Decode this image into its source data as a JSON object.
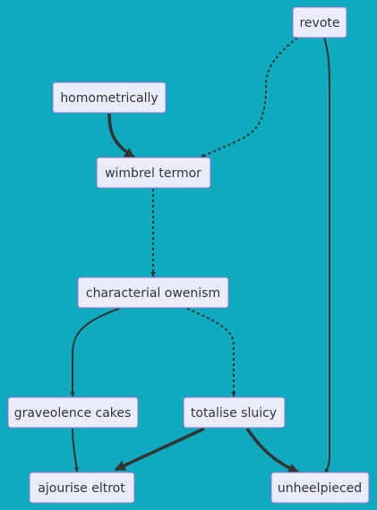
{
  "theme": {
    "background": "#0eabbf",
    "node_fill": "#ececff",
    "node_stroke": "#9370db",
    "edge_color": "#333333",
    "text_color": "#333333"
  },
  "nodes": [
    {
      "id": "revote",
      "label": "revote"
    },
    {
      "id": "homometrically",
      "label": "homometrically"
    },
    {
      "id": "wimbrel-termor",
      "label": "wimbrel termor"
    },
    {
      "id": "characterial-owenism",
      "label": "characterial owenism"
    },
    {
      "id": "graveolence-cakes",
      "label": "graveolence cakes"
    },
    {
      "id": "totalise-sluicy",
      "label": "totalise sluicy"
    },
    {
      "id": "ajourise-eltrot",
      "label": "ajourise eltrot"
    },
    {
      "id": "unheelpieced",
      "label": "unheelpieced"
    }
  ],
  "edges": [
    {
      "from": "homometrically",
      "to": "wimbrel-termor",
      "style": "thick"
    },
    {
      "from": "revote",
      "to": "wimbrel-termor",
      "style": "dotted"
    },
    {
      "from": "revote",
      "to": "unheelpieced",
      "style": "normal"
    },
    {
      "from": "wimbrel-termor",
      "to": "characterial-owenism",
      "style": "dotted"
    },
    {
      "from": "characterial-owenism",
      "to": "graveolence-cakes",
      "style": "normal"
    },
    {
      "from": "characterial-owenism",
      "to": "totalise-sluicy",
      "style": "dotted"
    },
    {
      "from": "graveolence-cakes",
      "to": "ajourise-eltrot",
      "style": "normal"
    },
    {
      "from": "totalise-sluicy",
      "to": "ajourise-eltrot",
      "style": "thick"
    },
    {
      "from": "totalise-sluicy",
      "to": "unheelpieced",
      "style": "thick"
    }
  ]
}
